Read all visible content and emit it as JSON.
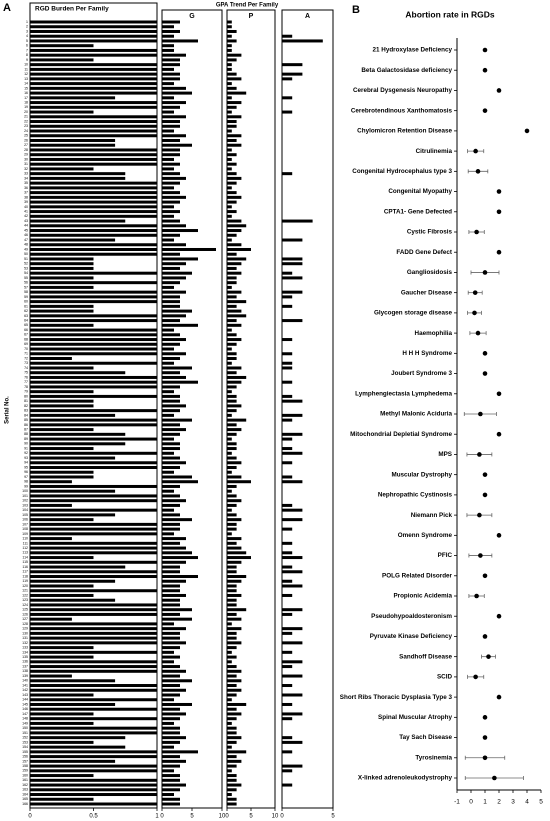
{
  "figure": {
    "panels": [
      "A",
      "B"
    ],
    "group_title": "GPA Trend Per Family"
  },
  "chart_data": [
    {
      "type": "bar",
      "title": "RGD Burden Per Family",
      "y_label": "Serial No.",
      "color": "#000000",
      "categories": [
        1,
        2,
        3,
        4,
        5,
        6,
        7,
        8,
        9,
        10,
        11,
        12,
        13,
        14,
        15,
        16,
        17,
        18,
        19,
        20,
        21,
        22,
        23,
        24,
        25,
        26,
        27,
        28,
        29,
        30,
        31,
        32,
        33,
        34,
        35,
        36,
        37,
        38,
        39,
        40,
        41,
        42,
        43,
        44,
        45,
        46,
        47,
        48,
        49,
        50,
        51,
        52,
        53,
        54,
        55,
        56,
        57,
        58,
        59,
        60,
        61,
        62,
        63,
        64,
        65,
        66,
        67,
        68,
        69,
        70,
        71,
        72,
        73,
        74,
        75,
        76,
        77,
        78,
        79,
        80,
        81,
        82,
        83,
        84,
        85,
        86,
        87,
        88,
        89,
        90,
        91,
        92,
        93,
        94,
        95,
        96,
        97,
        98,
        99,
        100,
        101,
        102,
        103,
        104,
        105,
        106,
        107,
        108,
        109,
        110,
        111,
        112,
        113,
        114,
        115,
        116,
        117,
        118,
        119,
        120,
        121,
        122,
        123,
        124,
        125,
        126,
        127,
        128,
        129,
        130,
        131,
        132,
        133,
        134,
        135,
        136,
        137,
        138,
        139,
        140,
        141,
        142,
        143,
        144,
        145,
        146,
        147,
        148,
        149,
        150,
        151,
        152,
        153,
        154,
        155,
        156,
        157,
        158,
        159,
        160,
        161,
        162,
        163,
        164,
        165,
        166
      ],
      "values": [
        1,
        1,
        1,
        1,
        1,
        0.5,
        1,
        1,
        0.5,
        1,
        1,
        1,
        1,
        1,
        1,
        1,
        0.67,
        1,
        1,
        0.5,
        1,
        1,
        1,
        1,
        1,
        0.67,
        0.67,
        1,
        1,
        1,
        1,
        0.5,
        0.75,
        0.75,
        1,
        1,
        1,
        1,
        1,
        1,
        1,
        1,
        0.75,
        1,
        1,
        1,
        0.67,
        1,
        1,
        1,
        0.5,
        0.5,
        0.5,
        1,
        0.5,
        1,
        0.5,
        1,
        1,
        1,
        0.5,
        0.5,
        1,
        1,
        0.5,
        1,
        1,
        1,
        1,
        1,
        1,
        0.33,
        1,
        0.5,
        0.75,
        1,
        1,
        1,
        0.5,
        1,
        0.5,
        0.5,
        1,
        0.67,
        1,
        1,
        0.5,
        0.75,
        1,
        0.75,
        0.5,
        1,
        0.67,
        1,
        1,
        0.5,
        0.5,
        0.33,
        1,
        0.67,
        1,
        1,
        0.33,
        1,
        0.67,
        0.5,
        1,
        1,
        1,
        0.33,
        1,
        1,
        1,
        0.5,
        1,
        0.75,
        1,
        1,
        0.67,
        0.5,
        1,
        0.5,
        0.67,
        1,
        1,
        1,
        0.33,
        1,
        1,
        1,
        1,
        1,
        0.5,
        1,
        0.5,
        1,
        1,
        1,
        0.33,
        0.67,
        1,
        1,
        0.5,
        1,
        0.67,
        1,
        0.5,
        1,
        0.5,
        1,
        1,
        0.75,
        0.5,
        0.75,
        1,
        1,
        0.67,
        1,
        1,
        0.5,
        1,
        1,
        1,
        1,
        0.5,
        1
      ],
      "xlim": [
        0,
        1
      ],
      "xticks": [
        0,
        0.5,
        1
      ]
    },
    {
      "type": "bar",
      "title": "G",
      "color": "#000000",
      "values": [
        3,
        2,
        3,
        2,
        6,
        2,
        2,
        4,
        3,
        3,
        2,
        3,
        3,
        2,
        4,
        5,
        2,
        4,
        3,
        2,
        4,
        3,
        3,
        2,
        4,
        3,
        5,
        3,
        3,
        2,
        3,
        2,
        3,
        4,
        3,
        2,
        3,
        4,
        3,
        2,
        3,
        2,
        3,
        4,
        6,
        3,
        2,
        4,
        9,
        3,
        6,
        4,
        3,
        5,
        4,
        3,
        2,
        4,
        3,
        3,
        3,
        5,
        4,
        3,
        6,
        2,
        3,
        4,
        3,
        2,
        4,
        3,
        2,
        5,
        3,
        4,
        6,
        3,
        2,
        3,
        3,
        4,
        3,
        2,
        5,
        3,
        4,
        3,
        2,
        3,
        3,
        2,
        3,
        4,
        3,
        2,
        5,
        6,
        3,
        2,
        3,
        4,
        3,
        2,
        3,
        5,
        3,
        3,
        2,
        4,
        3,
        4,
        5,
        6,
        4,
        3,
        3,
        6,
        4,
        3,
        3,
        4,
        3,
        3,
        5,
        3,
        5,
        2,
        4,
        3,
        3,
        4,
        3,
        2,
        3,
        2,
        3,
        4,
        3,
        5,
        3,
        4,
        3,
        2,
        5,
        3,
        4,
        3,
        2,
        3,
        3,
        4,
        3,
        2,
        6,
        3,
        4,
        3,
        2,
        3,
        3,
        4,
        3,
        2,
        3,
        3
      ],
      "xlim": [
        0,
        10
      ],
      "xticks": [
        0,
        5,
        10
      ]
    },
    {
      "type": "bar",
      "title": "P",
      "color": "#000000",
      "values": [
        1,
        1,
        2,
        1,
        2,
        1,
        1,
        3,
        2,
        1,
        1,
        2,
        3,
        1,
        2,
        4,
        1,
        3,
        2,
        1,
        3,
        2,
        2,
        1,
        3,
        2,
        3,
        1,
        2,
        1,
        2,
        1,
        2,
        3,
        2,
        1,
        2,
        3,
        2,
        1,
        2,
        1,
        3,
        4,
        3,
        2,
        1,
        3,
        5,
        2,
        4,
        3,
        2,
        3,
        2,
        2,
        1,
        3,
        2,
        4,
        2,
        3,
        4,
        2,
        3,
        1,
        2,
        3,
        2,
        1,
        2,
        2,
        1,
        3,
        2,
        4,
        3,
        2,
        1,
        2,
        2,
        3,
        2,
        1,
        4,
        2,
        3,
        2,
        1,
        2,
        2,
        1,
        2,
        3,
        2,
        1,
        3,
        5,
        2,
        1,
        2,
        3,
        2,
        1,
        2,
        3,
        2,
        2,
        1,
        3,
        2,
        3,
        4,
        5,
        3,
        2,
        2,
        4,
        3,
        2,
        2,
        3,
        2,
        2,
        4,
        2,
        3,
        1,
        3,
        2,
        2,
        3,
        2,
        1,
        2,
        1,
        2,
        3,
        2,
        3,
        2,
        3,
        2,
        1,
        4,
        2,
        3,
        2,
        1,
        2,
        2,
        3,
        2,
        1,
        4,
        2,
        3,
        2,
        1,
        2,
        2,
        3,
        2,
        1,
        2,
        2
      ],
      "xlim": [
        0,
        10
      ],
      "xticks": [
        0,
        5,
        10
      ]
    },
    {
      "type": "bar",
      "title": "A",
      "color": "#000000",
      "values": [
        0,
        0,
        0,
        1,
        4,
        0,
        0,
        0,
        0,
        2,
        0,
        2,
        1,
        0,
        0,
        0,
        1,
        0,
        0,
        1,
        0,
        0,
        0,
        0,
        0,
        0,
        0,
        0,
        0,
        0,
        0,
        0,
        1,
        0,
        0,
        0,
        0,
        0,
        0,
        0,
        0,
        0,
        3,
        0,
        0,
        0,
        2,
        0,
        0,
        0,
        2,
        2,
        0,
        1,
        2,
        0,
        0,
        2,
        1,
        0,
        1,
        0,
        0,
        2,
        0,
        0,
        0,
        1,
        0,
        0,
        1,
        0,
        1,
        1,
        0,
        0,
        1,
        0,
        0,
        1,
        2,
        0,
        0,
        2,
        1,
        0,
        0,
        2,
        1,
        0,
        1,
        2,
        0,
        1,
        0,
        0,
        1,
        2,
        0,
        0,
        0,
        0,
        1,
        2,
        0,
        2,
        0,
        1,
        0,
        0,
        1,
        0,
        1,
        2,
        0,
        1,
        2,
        0,
        1,
        2,
        0,
        1,
        0,
        0,
        2,
        1,
        0,
        0,
        2,
        1,
        0,
        2,
        0,
        1,
        0,
        2,
        1,
        0,
        2,
        0,
        1,
        0,
        2,
        0,
        1,
        0,
        2,
        1,
        0,
        0,
        0,
        1,
        2,
        0,
        1,
        0,
        0,
        2,
        1,
        0,
        0,
        1,
        0,
        0,
        0,
        0
      ],
      "xlim": [
        0,
        5
      ],
      "xticks": [
        0,
        5
      ]
    },
    {
      "type": "dot",
      "title": "Abortion rate in RGDs",
      "color": "#000000",
      "categories": [
        "21 Hydroxylase Deficiency",
        "Beta Galactosidase deficiency",
        "Cerebral Dysgenesis Neuropathy",
        "Cerebrotendinous Xanthomatosis",
        "Chylomicron Retention Disease",
        "Citrulinemia",
        "Congenital Hydrocephalus type 3",
        "Congenital Myopathy",
        "CPTA1- Gene Defected",
        "Cystic Fibrosis",
        "FADD Gene Defect",
        "Gangliosidosis",
        "Gaucher Disease",
        "Glycogen storage disease",
        "Haemophilia",
        "H H H Syndrome",
        "Joubert Syndrome 3",
        "Lymphengiectasia Lymphedema",
        "Methyl Malonic Aciduria",
        "Mitochondrial Depletial Syndrome",
        "MPS",
        "Muscular Dystrophy",
        "Nephropathic Cystinosis",
        "Niemann Pick",
        "Omenn Syndrome",
        "PFIC",
        "POLG Related Disorder",
        "Propionic Acidemia",
        "Pseudohypoaldosteronism",
        "Pyruvate Kinase Deficiency",
        "Sandhoff Disease",
        "SCID",
        "Short Ribs Thoracic Dysplasia Type 3",
        "Spinal Muscular Atrophy",
        "Tay Sach Disease",
        "Tyrosinemia",
        "X-linked adrenoleukodystrophy"
      ],
      "values": [
        1,
        1,
        2,
        1,
        4,
        0.33,
        0.5,
        2,
        2,
        0.4,
        2,
        1,
        0.3,
        0.25,
        0.5,
        1,
        1,
        2,
        0.67,
        2,
        0.6,
        1,
        1,
        0.6,
        2,
        0.67,
        1,
        0.4,
        2,
        1,
        1.25,
        0.33,
        2,
        1,
        1,
        1,
        1.67
      ],
      "errors": [
        null,
        null,
        null,
        null,
        null,
        0.58,
        0.7,
        null,
        null,
        0.55,
        null,
        1,
        0.5,
        0.5,
        0.58,
        null,
        null,
        null,
        1.15,
        null,
        0.89,
        null,
        null,
        0.89,
        null,
        0.82,
        null,
        0.55,
        null,
        null,
        0.5,
        0.58,
        null,
        null,
        null,
        1.41,
        2.08
      ],
      "xlim": [
        -1,
        5
      ],
      "xticks": [
        -1,
        0,
        1,
        2,
        3,
        4,
        5
      ]
    }
  ]
}
